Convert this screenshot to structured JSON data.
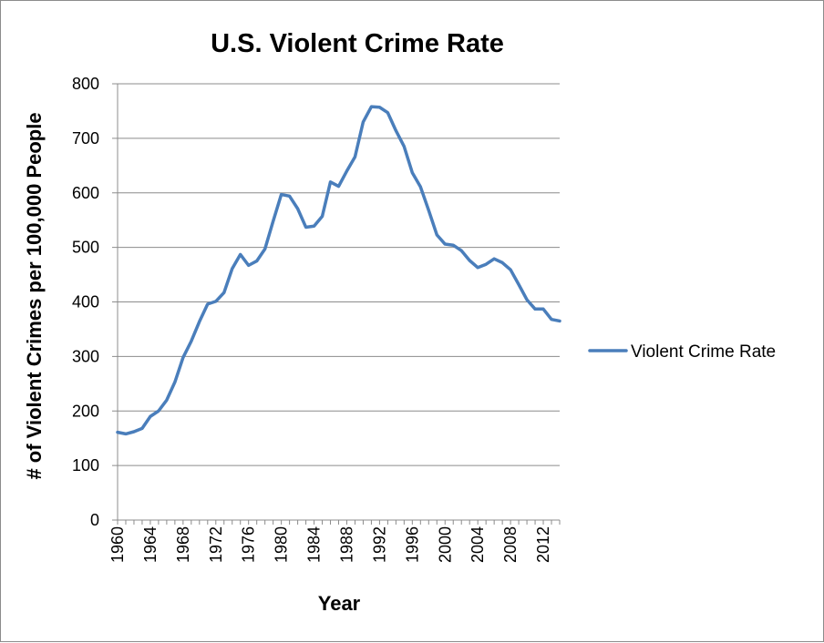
{
  "chart_data": {
    "type": "line",
    "title": "U.S. Violent Crime Rate",
    "xlabel": "Year",
    "ylabel": "# of Violent Crimes per 100,000 People",
    "ylim": [
      0,
      800
    ],
    "xlim": [
      1960,
      2014
    ],
    "y_ticks": [
      "0",
      "100",
      "200",
      "300",
      "400",
      "500",
      "600",
      "700",
      "800"
    ],
    "x_ticks": [
      "1960",
      "1964",
      "1968",
      "1972",
      "1976",
      "1980",
      "1984",
      "1988",
      "1992",
      "1996",
      "2000",
      "2004",
      "2008",
      "2012"
    ],
    "grid": "horizontal",
    "legend_position": "right",
    "series": [
      {
        "name": "Violent Crime Rate",
        "color": "#4a7ebb",
        "x": [
          1960,
          1961,
          1962,
          1963,
          1964,
          1965,
          1966,
          1967,
          1968,
          1969,
          1970,
          1971,
          1972,
          1973,
          1974,
          1975,
          1976,
          1977,
          1978,
          1979,
          1980,
          1981,
          1982,
          1983,
          1984,
          1985,
          1986,
          1987,
          1988,
          1989,
          1990,
          1991,
          1992,
          1993,
          1994,
          1995,
          1996,
          1997,
          1998,
          1999,
          2000,
          2001,
          2002,
          2003,
          2004,
          2005,
          2006,
          2007,
          2008,
          2009,
          2010,
          2011,
          2012,
          2013,
          2014
        ],
        "values": [
          161,
          158,
          162,
          168,
          190,
          200,
          220,
          253,
          298,
          328,
          364,
          396,
          401,
          417,
          461,
          487,
          467,
          475,
          497,
          548,
          597,
          594,
          571,
          537,
          539,
          557,
          620,
          612,
          640,
          666,
          730,
          758,
          757,
          747,
          714,
          685,
          637,
          611,
          568,
          523,
          506,
          504,
          494,
          476,
          463,
          469,
          479,
          472,
          459,
          432,
          404,
          387,
          387,
          368,
          365
        ]
      }
    ]
  }
}
